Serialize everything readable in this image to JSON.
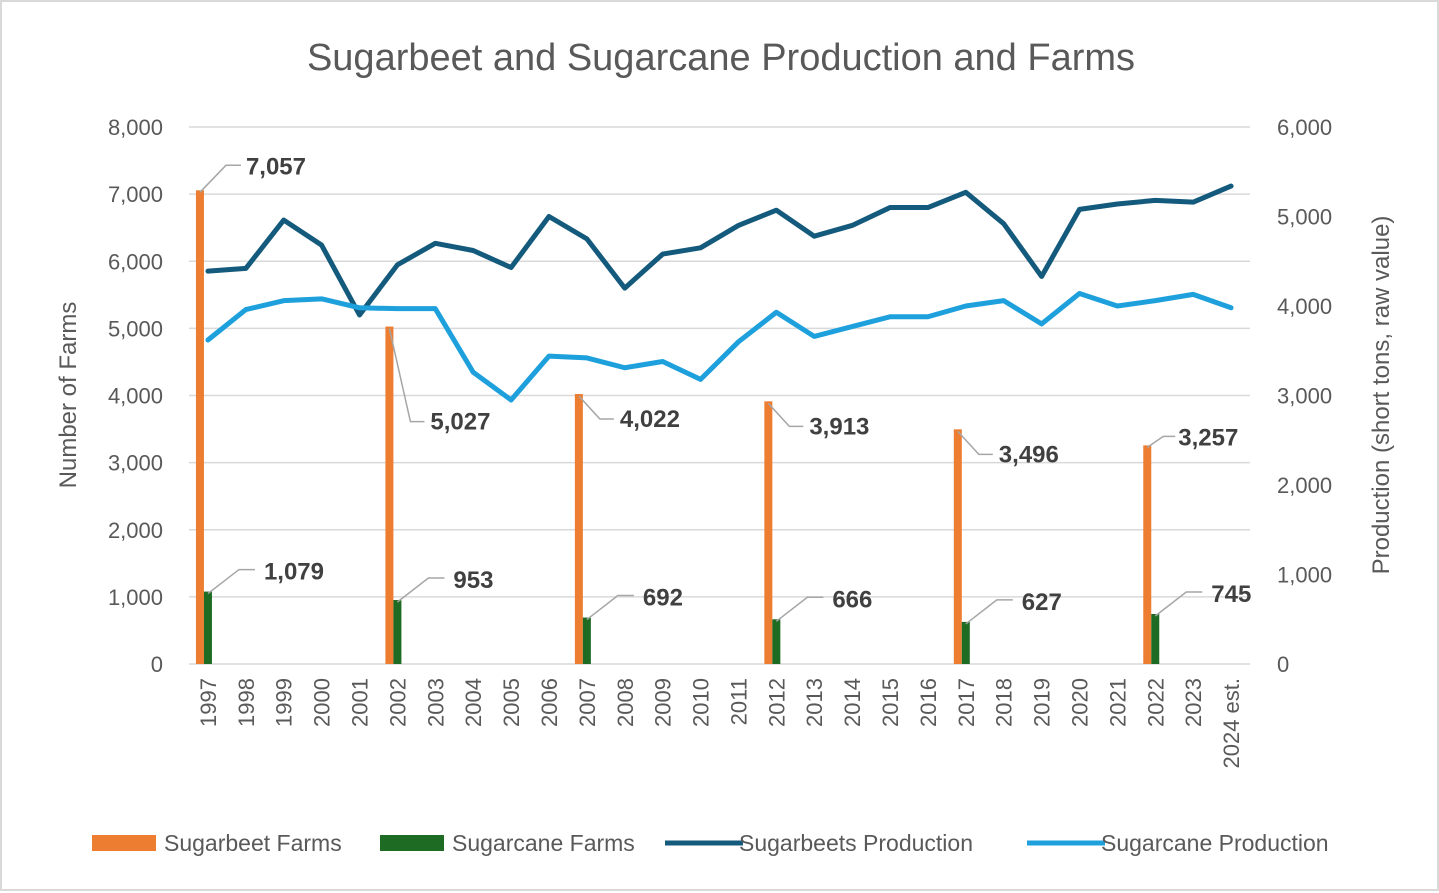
{
  "chart_data": {
    "type": "bar",
    "title": "Sugarbeet and Sugarcane Production and Farms",
    "ylabel": "Number of Farms",
    "y2label": "Production (short tons, raw value)",
    "ylim": [
      0,
      8000
    ],
    "y2lim": [
      0,
      6000
    ],
    "yticks": [
      "0",
      "1,000",
      "2,000",
      "3,000",
      "4,000",
      "5,000",
      "6,000",
      "7,000",
      "8,000"
    ],
    "y2ticks": [
      "0",
      "1,000",
      "2,000",
      "3,000",
      "4,000",
      "5,000",
      "6,000"
    ],
    "categories": [
      "1997",
      "1998",
      "1999",
      "2000",
      "2001",
      "2002",
      "2003",
      "2004",
      "2005",
      "2006",
      "2007",
      "2008",
      "2009",
      "2010",
      "2011",
      "2012",
      "2013",
      "2014",
      "2015",
      "2016",
      "2017",
      "2018",
      "2019",
      "2020",
      "2021",
      "2022",
      "2023",
      "2024 est."
    ],
    "grid": true,
    "legend_position": "bottom",
    "series": [
      {
        "name": "Sugarbeet Farms",
        "type": "bar",
        "axis": "left",
        "color": "#ed7d31",
        "values": [
          7057,
          null,
          null,
          null,
          null,
          5027,
          null,
          null,
          null,
          null,
          4022,
          null,
          null,
          null,
          null,
          3913,
          null,
          null,
          null,
          null,
          3496,
          null,
          null,
          null,
          null,
          3257,
          null,
          null
        ],
        "labels": [
          "7,057",
          "",
          "",
          "",
          "",
          "5,027",
          "",
          "",
          "",
          "",
          "4,022",
          "",
          "",
          "",
          "",
          "3,913",
          "",
          "",
          "",
          "",
          "3,496",
          "",
          "",
          "",
          "",
          "3,257",
          "",
          ""
        ]
      },
      {
        "name": "Sugarcane Farms",
        "type": "bar",
        "axis": "left",
        "color": "#1e6b24",
        "values": [
          1079,
          null,
          null,
          null,
          null,
          953,
          null,
          null,
          null,
          null,
          692,
          null,
          null,
          null,
          null,
          666,
          null,
          null,
          null,
          null,
          627,
          null,
          null,
          null,
          null,
          745,
          null,
          null
        ],
        "labels": [
          "1,079",
          "",
          "",
          "",
          "",
          "953",
          "",
          "",
          "",
          "",
          "692",
          "",
          "",
          "",
          "",
          "666",
          "",
          "",
          "",
          "",
          "627",
          "",
          "",
          "",
          "",
          "745",
          "",
          ""
        ]
      },
      {
        "name": "Sugarbeets Production",
        "type": "line",
        "axis": "right",
        "color": "#145a7c",
        "values": [
          4390,
          4420,
          4960,
          4680,
          3900,
          4460,
          4700,
          4620,
          4430,
          5000,
          4750,
          4200,
          4580,
          4650,
          4900,
          5070,
          4780,
          4900,
          5100,
          5100,
          5270,
          4920,
          4330,
          5080,
          5140,
          5180,
          5160,
          5340
        ]
      },
      {
        "name": "Sugarcane Production",
        "type": "line",
        "axis": "right",
        "color": "#1ea0dc",
        "values": [
          3620,
          3960,
          4060,
          4080,
          3980,
          3970,
          3970,
          3260,
          2950,
          3440,
          3420,
          3310,
          3380,
          3180,
          3600,
          3930,
          3660,
          3770,
          3880,
          3880,
          4000,
          4060,
          3800,
          4140,
          4000,
          4060,
          4130,
          3980
        ]
      }
    ]
  }
}
